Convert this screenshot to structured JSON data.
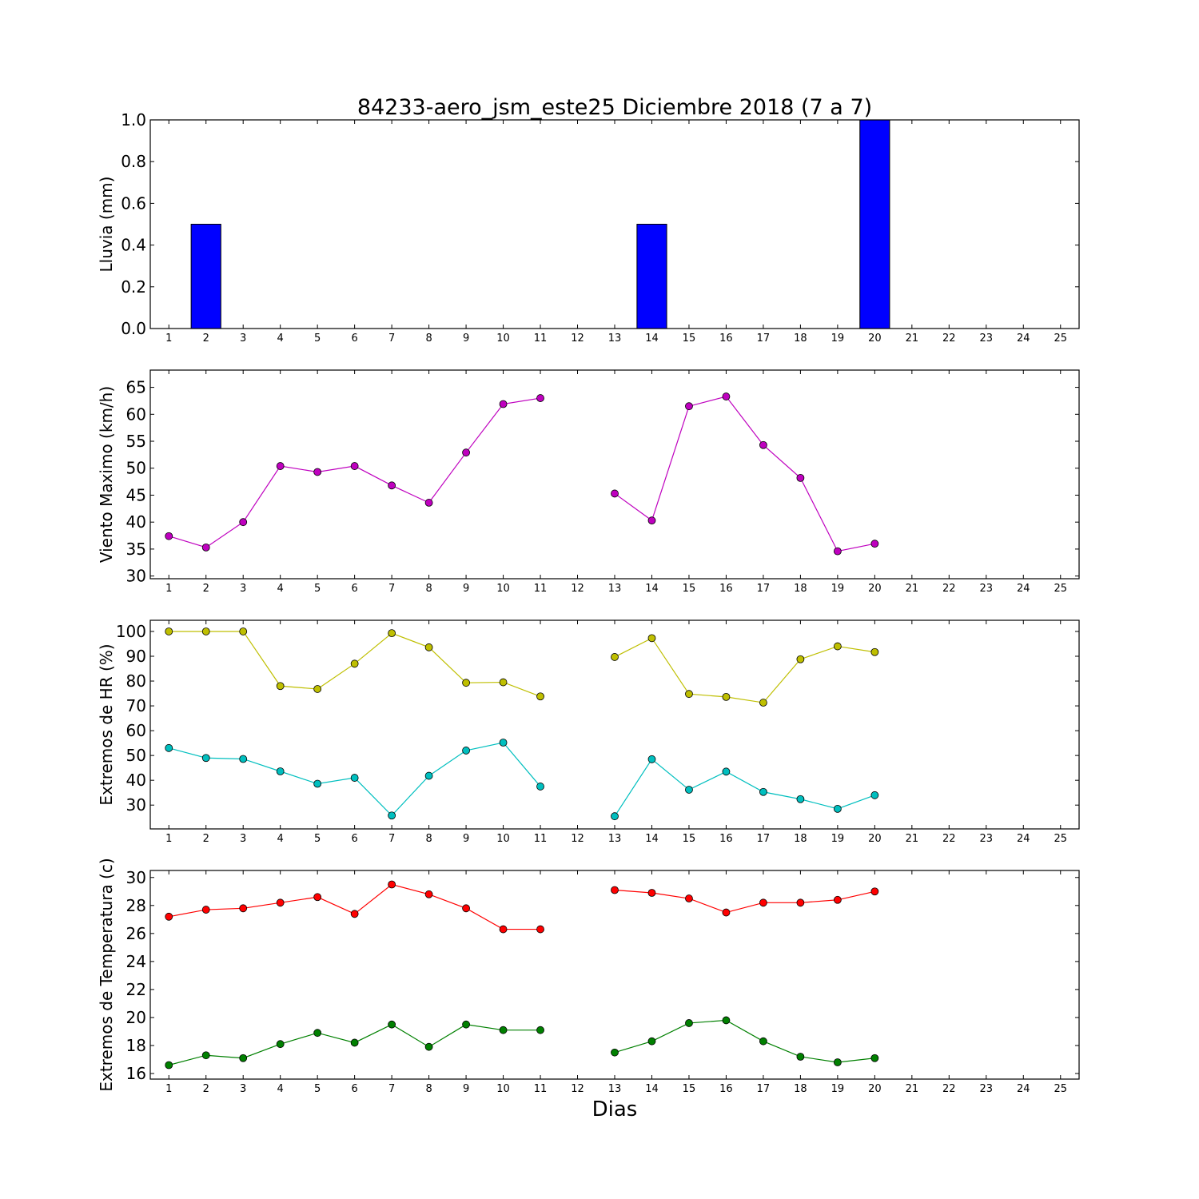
{
  "figure": {
    "title": "84233-aero_jsm_este25 Diciembre 2018  (7 a 7)",
    "xlabel": "Dias"
  },
  "colors": {
    "bar": "#0000ff",
    "wind": "#bf00bf",
    "hr_max": "#bfbf00",
    "hr_min": "#00bfbf",
    "temp_max": "#ff0000",
    "temp_min": "#008000"
  },
  "chart_data": [
    {
      "type": "bar",
      "ylabel": "Lluvia (mm)",
      "ylim": [
        0,
        1.0
      ],
      "xlim": [
        0.5,
        25.5
      ],
      "yticks": [
        0.0,
        0.2,
        0.4,
        0.6,
        0.8,
        1.0
      ],
      "ytick_labels": [
        "0.0",
        "0.2",
        "0.4",
        "0.6",
        "0.8",
        "1.0"
      ],
      "x": [
        1,
        2,
        3,
        4,
        5,
        6,
        7,
        8,
        9,
        10,
        11,
        12,
        13,
        14,
        15,
        16,
        17,
        18,
        19,
        20,
        21,
        22,
        23,
        24,
        25
      ],
      "xtick_labels": [
        "1",
        "2",
        "3",
        "4",
        "5",
        "6",
        "7",
        "8",
        "9",
        "10",
        "11",
        "12",
        "13",
        "14",
        "15",
        "16",
        "17",
        "18",
        "19",
        "20",
        "21",
        "22",
        "23",
        "24",
        "25"
      ],
      "series": [
        {
          "color": "#0000ff",
          "values": [
            0,
            0.5,
            0,
            0,
            0,
            0,
            0,
            0,
            0,
            0,
            0,
            null,
            0,
            0.5,
            0,
            0,
            0,
            0,
            0,
            1.0,
            null,
            null,
            null,
            null,
            null
          ]
        }
      ]
    },
    {
      "type": "line",
      "ylabel": "Viento Maximo (km/h)",
      "ylim": [
        29.5,
        68.2
      ],
      "xlim": [
        0.5,
        25.5
      ],
      "yticks": [
        30,
        35,
        40,
        45,
        50,
        55,
        60,
        65
      ],
      "ytick_labels": [
        "30",
        "35",
        "40",
        "45",
        "50",
        "55",
        "60",
        "65"
      ],
      "x": [
        1,
        2,
        3,
        4,
        5,
        6,
        7,
        8,
        9,
        10,
        11,
        12,
        13,
        14,
        15,
        16,
        17,
        18,
        19,
        20,
        21,
        22,
        23,
        24,
        25
      ],
      "xtick_labels": [
        "1",
        "2",
        "3",
        "4",
        "5",
        "6",
        "7",
        "8",
        "9",
        "10",
        "11",
        "12",
        "13",
        "14",
        "15",
        "16",
        "17",
        "18",
        "19",
        "20",
        "21",
        "22",
        "23",
        "24",
        "25"
      ],
      "series": [
        {
          "color": "#bf00bf",
          "values": [
            37.4,
            35.3,
            40.0,
            50.4,
            49.3,
            50.4,
            46.8,
            43.6,
            52.9,
            61.9,
            63.0,
            null,
            45.3,
            40.3,
            61.5,
            63.3,
            54.3,
            48.2,
            34.6,
            36.0,
            null,
            null,
            null,
            null,
            null
          ]
        }
      ]
    },
    {
      "type": "line",
      "ylabel": "Extremos de HR (%)",
      "ylim": [
        20.4,
        104.5
      ],
      "xlim": [
        0.5,
        25.5
      ],
      "yticks": [
        30,
        40,
        50,
        60,
        70,
        80,
        90,
        100
      ],
      "ytick_labels": [
        "30",
        "40",
        "50",
        "60",
        "70",
        "80",
        "90",
        "100"
      ],
      "x": [
        1,
        2,
        3,
        4,
        5,
        6,
        7,
        8,
        9,
        10,
        11,
        12,
        13,
        14,
        15,
        16,
        17,
        18,
        19,
        20,
        21,
        22,
        23,
        24,
        25
      ],
      "xtick_labels": [
        "1",
        "2",
        "3",
        "4",
        "5",
        "6",
        "7",
        "8",
        "9",
        "10",
        "11",
        "12",
        "13",
        "14",
        "15",
        "16",
        "17",
        "18",
        "19",
        "20",
        "21",
        "22",
        "23",
        "24",
        "25"
      ],
      "series": [
        {
          "color": "#bfbf00",
          "values": [
            100,
            100,
            100,
            78,
            76.8,
            87,
            99.3,
            93.6,
            79.3,
            79.5,
            73.8,
            null,
            89.7,
            97.3,
            74.8,
            73.6,
            71.3,
            88.8,
            94,
            91.7,
            null,
            null,
            null,
            null,
            null
          ]
        },
        {
          "color": "#00bfbf",
          "values": [
            53,
            49,
            48.6,
            43.6,
            38.6,
            41,
            25.8,
            41.8,
            52,
            55.2,
            37.5,
            null,
            25.5,
            48.5,
            36.2,
            43.5,
            35.3,
            32.4,
            28.5,
            34,
            null,
            null,
            null,
            null,
            null
          ]
        }
      ]
    },
    {
      "type": "line",
      "ylabel": "Extremos de Temperatura (c)",
      "ylim": [
        15.6,
        30.5
      ],
      "xlim": [
        0.5,
        25.5
      ],
      "yticks": [
        16,
        18,
        20,
        22,
        24,
        26,
        28,
        30
      ],
      "ytick_labels": [
        "16",
        "18",
        "20",
        "22",
        "24",
        "26",
        "28",
        "30"
      ],
      "x": [
        1,
        2,
        3,
        4,
        5,
        6,
        7,
        8,
        9,
        10,
        11,
        12,
        13,
        14,
        15,
        16,
        17,
        18,
        19,
        20,
        21,
        22,
        23,
        24,
        25
      ],
      "xtick_labels": [
        "1",
        "2",
        "3",
        "4",
        "5",
        "6",
        "7",
        "8",
        "9",
        "10",
        "11",
        "12",
        "13",
        "14",
        "15",
        "16",
        "17",
        "18",
        "19",
        "20",
        "21",
        "22",
        "23",
        "24",
        "25"
      ],
      "series": [
        {
          "color": "#ff0000",
          "values": [
            27.2,
            27.7,
            27.8,
            28.2,
            28.6,
            27.4,
            29.5,
            28.8,
            27.8,
            26.3,
            26.3,
            null,
            29.1,
            28.9,
            28.5,
            27.5,
            28.2,
            28.2,
            28.4,
            29.0,
            null,
            null,
            null,
            null,
            null
          ]
        },
        {
          "color": "#008000",
          "values": [
            16.6,
            17.3,
            17.1,
            18.1,
            18.9,
            18.2,
            19.5,
            17.9,
            19.5,
            19.1,
            19.1,
            null,
            17.5,
            18.3,
            19.6,
            19.8,
            18.3,
            17.2,
            16.8,
            17.1,
            null,
            null,
            null,
            null,
            null
          ]
        }
      ]
    }
  ]
}
